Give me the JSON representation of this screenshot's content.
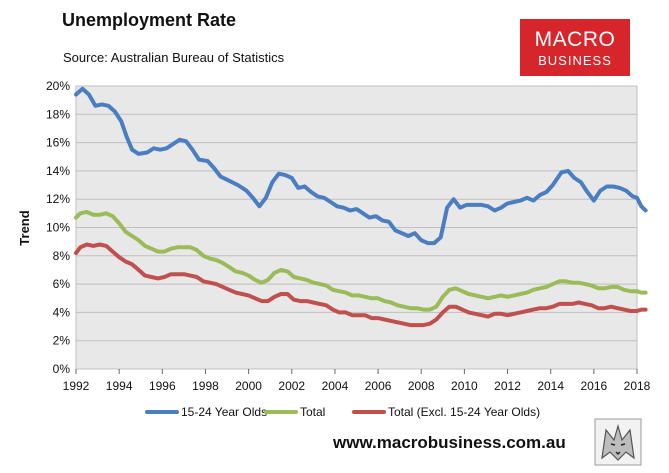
{
  "header": {
    "title": "Unemployment Rate",
    "subtitle": "Source: Australian Bureau of Statistics"
  },
  "logo": {
    "line1": "MACRO",
    "line2": "BUSINESS",
    "color": "#d7262b"
  },
  "footer": {
    "website": "www.macrobusiness.com.au"
  },
  "chart_data": {
    "type": "line",
    "title": "Unemployment Rate",
    "subtitle": "Source: Australian Bureau of Statistics",
    "ylabel": "Trend",
    "xlabel": "",
    "xlim": [
      1992,
      2018
    ],
    "ylim": [
      0,
      20
    ],
    "x_ticks": [
      "1992",
      "1994",
      "1996",
      "1998",
      "2000",
      "2002",
      "2004",
      "2006",
      "2008",
      "2010",
      "2012",
      "2014",
      "2016",
      "2018"
    ],
    "y_ticks": [
      "0%",
      "2%",
      "4%",
      "6%",
      "8%",
      "10%",
      "12%",
      "14%",
      "16%",
      "18%",
      "20%"
    ],
    "grid": true,
    "plot_background": "#e8e8e8",
    "legend_position": "bottom",
    "series": [
      {
        "name": "15-24 Year Olds",
        "color": "#4a7ec0",
        "points": [
          [
            1992,
            19.4
          ],
          [
            1992.3,
            19.8
          ],
          [
            1992.6,
            19.4
          ],
          [
            1992.9,
            18.6
          ],
          [
            1993.2,
            18.7
          ],
          [
            1993.5,
            18.6
          ],
          [
            1993.8,
            18.2
          ],
          [
            1994.1,
            17.5
          ],
          [
            1994.35,
            16.4
          ],
          [
            1994.6,
            15.5
          ],
          [
            1994.9,
            15.2
          ],
          [
            1995.3,
            15.3
          ],
          [
            1995.6,
            15.6
          ],
          [
            1995.9,
            15.5
          ],
          [
            1996.2,
            15.6
          ],
          [
            1996.5,
            15.9
          ],
          [
            1996.8,
            16.2
          ],
          [
            1997.1,
            16.1
          ],
          [
            1997.4,
            15.5
          ],
          [
            1997.7,
            14.8
          ],
          [
            1998.1,
            14.7
          ],
          [
            1998.4,
            14.2
          ],
          [
            1998.7,
            13.6
          ],
          [
            1999.1,
            13.3
          ],
          [
            1999.5,
            13.0
          ],
          [
            1999.9,
            12.6
          ],
          [
            2000.2,
            12.1
          ],
          [
            2000.5,
            11.5
          ],
          [
            2000.8,
            12.1
          ],
          [
            2001.1,
            13.2
          ],
          [
            2001.4,
            13.8
          ],
          [
            2001.7,
            13.7
          ],
          [
            2002.0,
            13.5
          ],
          [
            2002.3,
            12.8
          ],
          [
            2002.6,
            12.9
          ],
          [
            2002.9,
            12.5
          ],
          [
            2003.2,
            12.2
          ],
          [
            2003.5,
            12.1
          ],
          [
            2003.8,
            11.8
          ],
          [
            2004.1,
            11.5
          ],
          [
            2004.4,
            11.4
          ],
          [
            2004.7,
            11.2
          ],
          [
            2005.0,
            11.3
          ],
          [
            2005.3,
            11.0
          ],
          [
            2005.6,
            10.7
          ],
          [
            2005.9,
            10.8
          ],
          [
            2006.2,
            10.5
          ],
          [
            2006.5,
            10.4
          ],
          [
            2006.8,
            9.8
          ],
          [
            2007.1,
            9.6
          ],
          [
            2007.4,
            9.4
          ],
          [
            2007.7,
            9.6
          ],
          [
            2008.0,
            9.1
          ],
          [
            2008.3,
            8.9
          ],
          [
            2008.6,
            8.9
          ],
          [
            2008.9,
            9.3
          ],
          [
            2009.2,
            11.4
          ],
          [
            2009.5,
            12.0
          ],
          [
            2009.8,
            11.4
          ],
          [
            2010.1,
            11.6
          ],
          [
            2010.4,
            11.6
          ],
          [
            2010.8,
            11.6
          ],
          [
            2011.1,
            11.5
          ],
          [
            2011.4,
            11.2
          ],
          [
            2011.7,
            11.4
          ],
          [
            2012.0,
            11.7
          ],
          [
            2012.3,
            11.8
          ],
          [
            2012.6,
            11.9
          ],
          [
            2012.9,
            12.1
          ],
          [
            2013.2,
            11.9
          ],
          [
            2013.5,
            12.3
          ],
          [
            2013.8,
            12.5
          ],
          [
            2014.1,
            13.0
          ],
          [
            2014.5,
            13.9
          ],
          [
            2014.8,
            14.0
          ],
          [
            2015.1,
            13.5
          ],
          [
            2015.4,
            13.2
          ],
          [
            2015.7,
            12.5
          ],
          [
            2016.0,
            11.9
          ],
          [
            2016.3,
            12.6
          ],
          [
            2016.6,
            12.9
          ],
          [
            2016.9,
            12.9
          ],
          [
            2017.2,
            12.8
          ],
          [
            2017.5,
            12.6
          ],
          [
            2017.8,
            12.2
          ],
          [
            2018.0,
            12.1
          ],
          [
            2018.2,
            11.5
          ],
          [
            2018.4,
            11.2
          ]
        ]
      },
      {
        "name": "Total",
        "color": "#9bbb59",
        "points": [
          [
            1992,
            10.7
          ],
          [
            1992.2,
            11.0
          ],
          [
            1992.5,
            11.1
          ],
          [
            1992.8,
            10.9
          ],
          [
            1993.1,
            10.9
          ],
          [
            1993.4,
            11.0
          ],
          [
            1993.7,
            10.8
          ],
          [
            1994.0,
            10.3
          ],
          [
            1994.3,
            9.7
          ],
          [
            1994.6,
            9.4
          ],
          [
            1994.9,
            9.1
          ],
          [
            1995.2,
            8.7
          ],
          [
            1995.5,
            8.5
          ],
          [
            1995.8,
            8.3
          ],
          [
            1996.1,
            8.3
          ],
          [
            1996.4,
            8.5
          ],
          [
            1996.7,
            8.6
          ],
          [
            1997.0,
            8.6
          ],
          [
            1997.3,
            8.6
          ],
          [
            1997.6,
            8.4
          ],
          [
            1997.9,
            8.0
          ],
          [
            1998.2,
            7.8
          ],
          [
            1998.5,
            7.7
          ],
          [
            1998.8,
            7.5
          ],
          [
            1999.1,
            7.2
          ],
          [
            1999.4,
            6.9
          ],
          [
            1999.7,
            6.8
          ],
          [
            2000.0,
            6.6
          ],
          [
            2000.3,
            6.3
          ],
          [
            2000.6,
            6.1
          ],
          [
            2000.9,
            6.3
          ],
          [
            2001.2,
            6.8
          ],
          [
            2001.5,
            7.0
          ],
          [
            2001.8,
            6.9
          ],
          [
            2002.1,
            6.5
          ],
          [
            2002.4,
            6.4
          ],
          [
            2002.7,
            6.3
          ],
          [
            2003.0,
            6.1
          ],
          [
            2003.3,
            6.0
          ],
          [
            2003.6,
            5.9
          ],
          [
            2003.9,
            5.6
          ],
          [
            2004.2,
            5.5
          ],
          [
            2004.5,
            5.4
          ],
          [
            2004.8,
            5.2
          ],
          [
            2005.1,
            5.2
          ],
          [
            2005.4,
            5.1
          ],
          [
            2005.7,
            5.0
          ],
          [
            2006.0,
            5.0
          ],
          [
            2006.3,
            4.8
          ],
          [
            2006.6,
            4.7
          ],
          [
            2006.9,
            4.5
          ],
          [
            2007.2,
            4.4
          ],
          [
            2007.5,
            4.3
          ],
          [
            2007.8,
            4.3
          ],
          [
            2008.1,
            4.2
          ],
          [
            2008.4,
            4.2
          ],
          [
            2008.7,
            4.4
          ],
          [
            2009.0,
            5.1
          ],
          [
            2009.3,
            5.6
          ],
          [
            2009.6,
            5.7
          ],
          [
            2009.9,
            5.5
          ],
          [
            2010.2,
            5.3
          ],
          [
            2010.5,
            5.2
          ],
          [
            2010.8,
            5.1
          ],
          [
            2011.1,
            5.0
          ],
          [
            2011.4,
            5.1
          ],
          [
            2011.7,
            5.2
          ],
          [
            2012.0,
            5.1
          ],
          [
            2012.3,
            5.2
          ],
          [
            2012.6,
            5.3
          ],
          [
            2012.9,
            5.4
          ],
          [
            2013.2,
            5.6
          ],
          [
            2013.5,
            5.7
          ],
          [
            2013.8,
            5.8
          ],
          [
            2014.1,
            6.0
          ],
          [
            2014.4,
            6.2
          ],
          [
            2014.7,
            6.2
          ],
          [
            2015.0,
            6.1
          ],
          [
            2015.3,
            6.1
          ],
          [
            2015.6,
            6.0
          ],
          [
            2015.9,
            5.9
          ],
          [
            2016.2,
            5.7
          ],
          [
            2016.5,
            5.7
          ],
          [
            2016.8,
            5.8
          ],
          [
            2017.1,
            5.8
          ],
          [
            2017.4,
            5.6
          ],
          [
            2017.7,
            5.5
          ],
          [
            2018.0,
            5.5
          ],
          [
            2018.2,
            5.4
          ],
          [
            2018.4,
            5.4
          ]
        ]
      },
      {
        "name": "Total (Excl. 15-24 Year Olds)",
        "color": "#c0504d",
        "points": [
          [
            1992,
            8.2
          ],
          [
            1992.2,
            8.6
          ],
          [
            1992.5,
            8.8
          ],
          [
            1992.8,
            8.7
          ],
          [
            1993.1,
            8.8
          ],
          [
            1993.4,
            8.7
          ],
          [
            1993.7,
            8.3
          ],
          [
            1994.0,
            7.9
          ],
          [
            1994.3,
            7.6
          ],
          [
            1994.6,
            7.4
          ],
          [
            1994.9,
            7.0
          ],
          [
            1995.2,
            6.6
          ],
          [
            1995.5,
            6.5
          ],
          [
            1995.8,
            6.4
          ],
          [
            1996.1,
            6.5
          ],
          [
            1996.4,
            6.7
          ],
          [
            1996.7,
            6.7
          ],
          [
            1997.0,
            6.7
          ],
          [
            1997.3,
            6.6
          ],
          [
            1997.6,
            6.5
          ],
          [
            1997.9,
            6.2
          ],
          [
            1998.2,
            6.1
          ],
          [
            1998.5,
            6.0
          ],
          [
            1998.8,
            5.8
          ],
          [
            1999.1,
            5.6
          ],
          [
            1999.4,
            5.4
          ],
          [
            1999.7,
            5.3
          ],
          [
            2000.0,
            5.2
          ],
          [
            2000.3,
            5.0
          ],
          [
            2000.6,
            4.8
          ],
          [
            2000.9,
            4.8
          ],
          [
            2001.2,
            5.1
          ],
          [
            2001.5,
            5.3
          ],
          [
            2001.8,
            5.3
          ],
          [
            2002.1,
            4.9
          ],
          [
            2002.4,
            4.8
          ],
          [
            2002.7,
            4.8
          ],
          [
            2003.0,
            4.7
          ],
          [
            2003.3,
            4.6
          ],
          [
            2003.6,
            4.5
          ],
          [
            2003.9,
            4.2
          ],
          [
            2004.2,
            4.0
          ],
          [
            2004.5,
            4.0
          ],
          [
            2004.8,
            3.8
          ],
          [
            2005.1,
            3.8
          ],
          [
            2005.4,
            3.8
          ],
          [
            2005.7,
            3.6
          ],
          [
            2006.0,
            3.6
          ],
          [
            2006.3,
            3.5
          ],
          [
            2006.6,
            3.4
          ],
          [
            2006.9,
            3.3
          ],
          [
            2007.2,
            3.2
          ],
          [
            2007.5,
            3.1
          ],
          [
            2007.8,
            3.1
          ],
          [
            2008.1,
            3.1
          ],
          [
            2008.4,
            3.2
          ],
          [
            2008.7,
            3.5
          ],
          [
            2009.0,
            4.0
          ],
          [
            2009.3,
            4.4
          ],
          [
            2009.6,
            4.4
          ],
          [
            2009.9,
            4.2
          ],
          [
            2010.2,
            4.0
          ],
          [
            2010.5,
            3.9
          ],
          [
            2010.8,
            3.8
          ],
          [
            2011.1,
            3.7
          ],
          [
            2011.4,
            3.9
          ],
          [
            2011.7,
            3.9
          ],
          [
            2012.0,
            3.8
          ],
          [
            2012.3,
            3.9
          ],
          [
            2012.6,
            4.0
          ],
          [
            2012.9,
            4.1
          ],
          [
            2013.2,
            4.2
          ],
          [
            2013.5,
            4.3
          ],
          [
            2013.8,
            4.3
          ],
          [
            2014.1,
            4.4
          ],
          [
            2014.4,
            4.6
          ],
          [
            2014.7,
            4.6
          ],
          [
            2015.0,
            4.6
          ],
          [
            2015.3,
            4.7
          ],
          [
            2015.6,
            4.6
          ],
          [
            2015.9,
            4.5
          ],
          [
            2016.2,
            4.3
          ],
          [
            2016.5,
            4.3
          ],
          [
            2016.8,
            4.4
          ],
          [
            2017.1,
            4.3
          ],
          [
            2017.4,
            4.2
          ],
          [
            2017.7,
            4.1
          ],
          [
            2018.0,
            4.1
          ],
          [
            2018.2,
            4.2
          ],
          [
            2018.4,
            4.2
          ]
        ]
      }
    ]
  }
}
